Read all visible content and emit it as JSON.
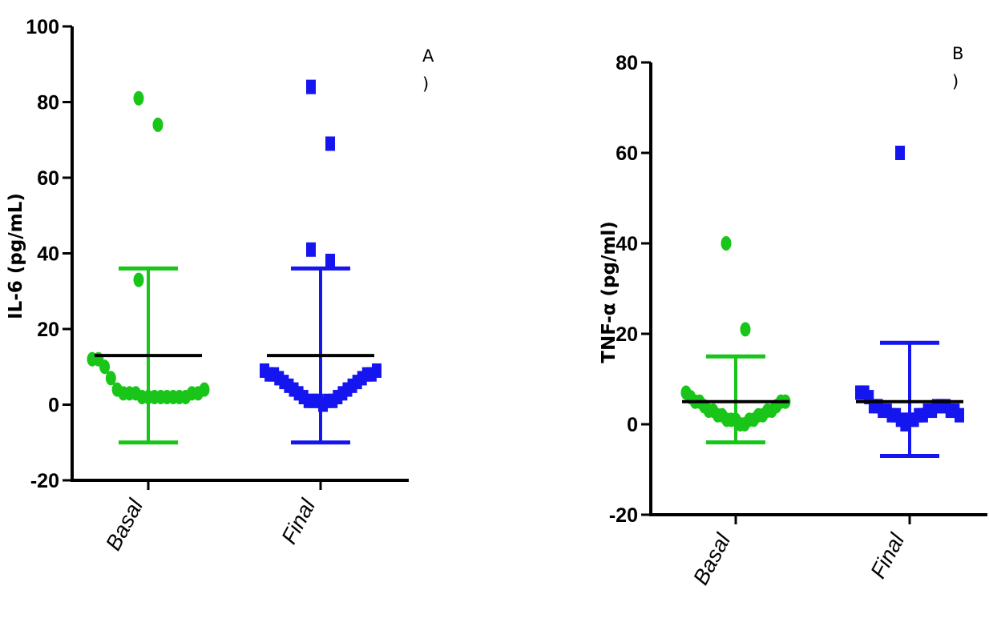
{
  "colors": {
    "Basal": "#19c519",
    "Final": "#1515f0",
    "mean": "#000000",
    "axis": "#000000"
  },
  "chart_data": [
    {
      "type": "scatter",
      "panel_label": [
        "A",
        ")"
      ],
      "ylabel": "IL-6 (pg/mL)",
      "ylim": [
        -20,
        100
      ],
      "yticks": [
        -20,
        0,
        20,
        40,
        60,
        80,
        100
      ],
      "categories": [
        "Basal",
        "Final"
      ],
      "series": [
        {
          "name": "Basal",
          "marker": "circle",
          "mean": 13,
          "sd_upper": 36,
          "sd_lower": -10,
          "points": [
            81,
            74,
            33,
            12,
            12,
            10,
            7,
            4,
            3,
            3,
            3,
            2,
            2,
            2,
            2,
            2,
            2,
            2,
            2,
            3,
            3,
            4
          ]
        },
        {
          "name": "Final",
          "marker": "square",
          "mean": 13,
          "sd_upper": 36,
          "sd_lower": -10,
          "points": [
            84,
            69,
            41,
            38,
            9,
            8,
            8,
            7,
            6,
            5,
            4,
            3,
            2,
            1,
            1,
            1,
            0,
            1,
            1,
            2,
            3,
            4,
            5,
            6,
            7,
            8,
            8,
            9
          ]
        }
      ]
    },
    {
      "type": "scatter",
      "panel_label": [
        "B",
        ")"
      ],
      "ylabel": "TNF-α (pg/ml)",
      "ylim": [
        -20,
        80
      ],
      "yticks": [
        -20,
        0,
        20,
        40,
        60,
        80
      ],
      "categories": [
        "Basal",
        "Final"
      ],
      "series": [
        {
          "name": "Basal",
          "marker": "circle",
          "mean": 5,
          "sd_upper": 15,
          "sd_lower": -4,
          "points": [
            40,
            21,
            7,
            6,
            5,
            5,
            4,
            3,
            3,
            2,
            2,
            1,
            1,
            1,
            0,
            0,
            1,
            1,
            2,
            2,
            3,
            3,
            4,
            5,
            5
          ]
        },
        {
          "name": "Final",
          "marker": "square",
          "mean": 5,
          "sd_upper": 18,
          "sd_lower": -7,
          "points": [
            60,
            7,
            7,
            6,
            4,
            4,
            3,
            3,
            2,
            2,
            1,
            0,
            1,
            1,
            2,
            2,
            3,
            3,
            4,
            4,
            4,
            3,
            3,
            2
          ]
        }
      ]
    }
  ]
}
